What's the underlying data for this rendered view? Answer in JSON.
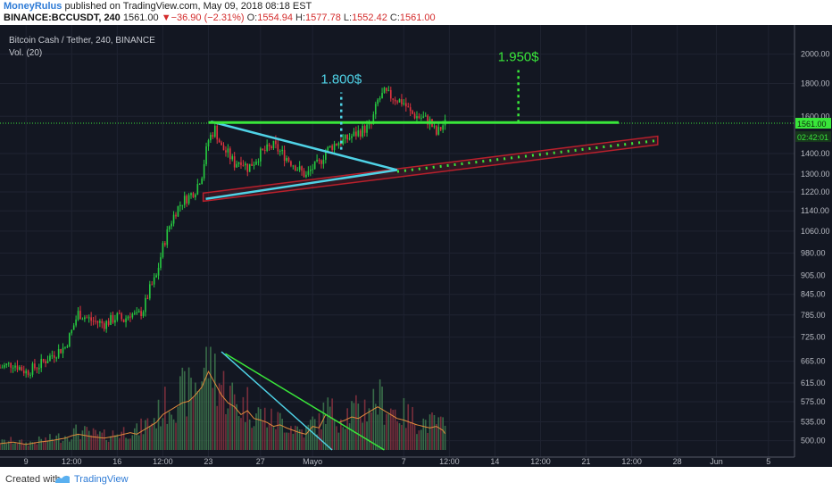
{
  "header": {
    "author": "MoneyRulus",
    "published": "published on TradingView.com, May 09, 2018 08:18 EST",
    "symbol": "BINANCE:BCCUSDT, 240",
    "last": "1561.00",
    "change_arrow": "▼",
    "change": "−36.90 (−2.31%)",
    "o_label": "O:",
    "o": "1554.94",
    "h_label": "H:",
    "h": "1577.78",
    "l_label": "L:",
    "l": "1552.42",
    "c_label": "C:",
    "c": "1561.00"
  },
  "legend": {
    "title": "Bitcoin Cash / Tether, 240, BINANCE",
    "volume": "Vol. (20)"
  },
  "footer": {
    "created": "Created with",
    "brand": "TradingView"
  },
  "colors": {
    "background": "#131722",
    "bull": "#26c940",
    "bear": "#e0343f",
    "triangle": "#4fd2e6",
    "resistance": "#39e63a",
    "channel": "#b8202c",
    "target_180": "#4fd2e6",
    "target_195": "#39e63a"
  },
  "chart_data": {
    "type": "candlestick",
    "y_scale": "log",
    "ylim": [
      470,
      2150
    ],
    "y_ticks": [
      2000,
      1800,
      1600,
      1400,
      1300,
      1220,
      1140,
      1060,
      980,
      905,
      845,
      785,
      725,
      665,
      615,
      575,
      535,
      500
    ],
    "y_tick_labels": [
      "2000.00",
      "1800.00",
      "1600.00",
      "1400.00",
      "1300.00",
      "1220.00",
      "1140.00",
      "1060.00",
      "980.00",
      "905.00",
      "845.00",
      "785.00",
      "725.00",
      "665.00",
      "615.00",
      "575.00",
      "535.00",
      "500.00"
    ],
    "x_tick_labels": [
      "9",
      "12:00",
      "16",
      "12:00",
      "23",
      "27",
      "Mayo",
      "7",
      "12:00",
      "14",
      "12:00",
      "21",
      "12:00",
      "28",
      "Jun",
      "5"
    ],
    "x_tick_days": [
      9,
      12.5,
      16,
      19.5,
      23,
      27,
      31,
      38,
      41.5,
      45,
      48.5,
      52,
      55.5,
      59,
      62,
      66
    ],
    "x_range_days": [
      7,
      68
    ],
    "current_price_label": "1561.00",
    "countdown_label": "02:42:01",
    "price_path_days": [
      7,
      8,
      9,
      10,
      11,
      12,
      12.5,
      13,
      14,
      15,
      16,
      16.5,
      17,
      17.5,
      18,
      18.5,
      19,
      19.5,
      20,
      20.5,
      21,
      21.5,
      22,
      22.5,
      23,
      23.5,
      24,
      24.5,
      25,
      25.5,
      26,
      26.5,
      27,
      27.5,
      28,
      28.5,
      29,
      29.5,
      30,
      30.5,
      31,
      31.5,
      32,
      32.5,
      33,
      33.5,
      34,
      34.5,
      35,
      35.5,
      36,
      36.5,
      37,
      37.5,
      38,
      38.5,
      39,
      39.5,
      40,
      40.5,
      41,
      41.2
    ],
    "price_path": [
      650,
      660,
      640,
      655,
      680,
      700,
      740,
      790,
      770,
      760,
      780,
      770,
      790,
      780,
      800,
      860,
      900,
      1000,
      1080,
      1140,
      1180,
      1200,
      1230,
      1300,
      1470,
      1530,
      1430,
      1400,
      1350,
      1370,
      1330,
      1360,
      1400,
      1420,
      1440,
      1410,
      1380,
      1350,
      1320,
      1290,
      1330,
      1350,
      1410,
      1440,
      1460,
      1470,
      1490,
      1510,
      1530,
      1550,
      1690,
      1740,
      1720,
      1700,
      1680,
      1620,
      1600,
      1590,
      1570,
      1500,
      1550,
      1561
    ],
    "volume_unit": "relative",
    "volume_path": [
      0.08,
      0.1,
      0.07,
      0.1,
      0.12,
      0.15,
      0.18,
      0.2,
      0.17,
      0.15,
      0.18,
      0.2,
      0.22,
      0.2,
      0.25,
      0.3,
      0.35,
      0.45,
      0.5,
      0.55,
      0.6,
      0.62,
      0.7,
      0.8,
      1.0,
      0.85,
      0.7,
      0.6,
      0.55,
      0.45,
      0.5,
      0.4,
      0.38,
      0.35,
      0.3,
      0.32,
      0.28,
      0.25,
      0.22,
      0.2,
      0.3,
      0.28,
      0.45,
      0.4,
      0.35,
      0.38,
      0.42,
      0.4,
      0.45,
      0.5,
      0.55,
      0.5,
      0.45,
      0.4,
      0.38,
      0.35,
      0.32,
      0.3,
      0.28,
      0.3,
      0.25,
      0.2
    ],
    "annotations": [
      {
        "label": "1.800$",
        "day": 33.2,
        "price": 1800,
        "from_price": 1420,
        "color_key": "target_180"
      },
      {
        "label": "1.950$",
        "day": 46.8,
        "price": 1950,
        "from_price": 1565,
        "color_key": "target_195"
      }
    ],
    "resistance_level": 1565,
    "resistance_days": [
      23,
      54.5
    ],
    "triangle": {
      "upper": [
        [
          23.2,
          1570
        ],
        [
          37.5,
          1320
        ]
      ],
      "lower": [
        [
          22.8,
          1190
        ],
        [
          37.5,
          1320
        ]
      ]
    },
    "channel": {
      "lower_start": [
        22.6,
        1180
      ],
      "lower_end": [
        57.5,
        1445
      ],
      "upper_start": [
        22.6,
        1215
      ],
      "upper_end": [
        57.5,
        1490
      ]
    },
    "volume_trendlines": [
      {
        "start": [
          24,
          1.0
        ],
        "end": [
          32.5,
          0.0
        ],
        "color_key": "triangle"
      },
      {
        "start": [
          24.3,
          0.98
        ],
        "end": [
          36.5,
          0.0
        ],
        "color_key": "resistance"
      }
    ]
  }
}
